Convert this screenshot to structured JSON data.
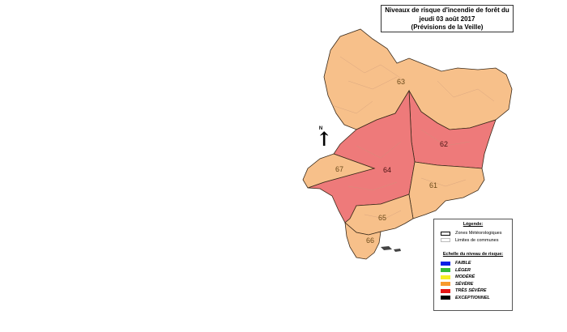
{
  "title": {
    "line1": "Niveaux de risque d'incendie de forêt du",
    "line2": "jeudi 03 août 2017",
    "line3": "(Prévisions de la Veille)"
  },
  "north_label": "N",
  "zones": [
    {
      "id": "63",
      "level": "SÉVÈRE",
      "color": "#f7c08a"
    },
    {
      "id": "62",
      "level": "TRÈS SÉVÈRE",
      "color": "#ee7a7a"
    },
    {
      "id": "64",
      "level": "TRÈS SÉVÈRE",
      "color": "#ee7a7a"
    },
    {
      "id": "67",
      "level": "SÉVÈRE",
      "color": "#f7c08a"
    },
    {
      "id": "61",
      "level": "SÉVÈRE",
      "color": "#f7c08a"
    },
    {
      "id": "65",
      "level": "SÉVÈRE",
      "color": "#f7c08a"
    },
    {
      "id": "66",
      "level": "SÉVÈRE",
      "color": "#f7c08a"
    }
  ],
  "legend": {
    "title": "Légende:",
    "zones_label": "Zones Météorologiques",
    "communes_label": "Limites de communes",
    "scale_title": "Echelle du niveau de risque:",
    "levels": [
      {
        "label": "FAIBLE",
        "color": "#0a1ee6"
      },
      {
        "label": "LÉGER",
        "color": "#35b93a"
      },
      {
        "label": "MODÉRÉ",
        "color": "#f4ee22"
      },
      {
        "label": "SÉVÈRE",
        "color": "#f79a2e"
      },
      {
        "label": "TRÈS SÉVÈRE",
        "color": "#e51616"
      },
      {
        "label": "EXCEPTIONNEL",
        "color": "#000000"
      }
    ]
  }
}
